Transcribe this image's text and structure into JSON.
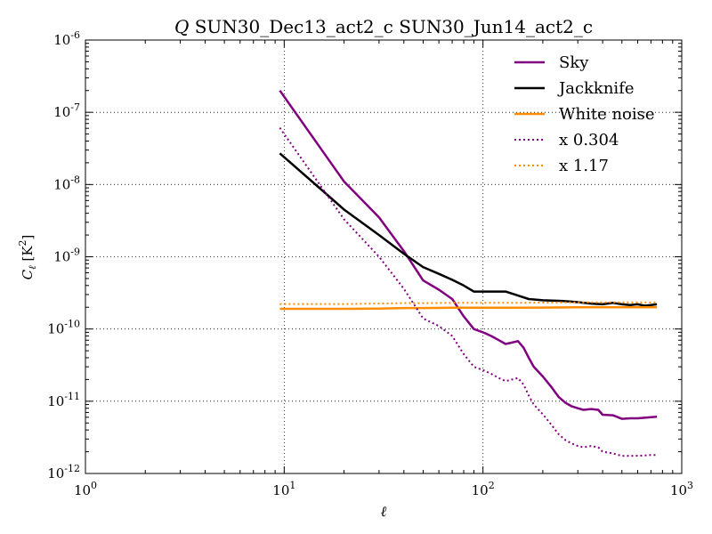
{
  "chart_data": {
    "type": "line",
    "title": {
      "prefix": "Q",
      "text": " SUN30_Dec13_act2_c SUN30_Jun14_act2_c"
    },
    "xlabel": "ℓ",
    "ylabel": {
      "base": "C",
      "sub": "ℓ",
      "unit_open": " [K",
      "unit_sup": "2",
      "unit_close": "]"
    },
    "x_scale": "log",
    "y_scale": "log",
    "xlim": [
      1,
      1000
    ],
    "ylim": [
      1e-12,
      1e-06
    ],
    "x_ticks": [
      {
        "value": 1,
        "base": "10",
        "exp": "0"
      },
      {
        "value": 10,
        "base": "10",
        "exp": "1"
      },
      {
        "value": 100,
        "base": "10",
        "exp": "2"
      },
      {
        "value": 1000,
        "base": "10",
        "exp": "3"
      }
    ],
    "y_ticks": [
      {
        "value": 1e-12,
        "base": "10",
        "exp": "-12"
      },
      {
        "value": 1e-11,
        "base": "10",
        "exp": "-11"
      },
      {
        "value": 1e-10,
        "base": "10",
        "exp": "-10"
      },
      {
        "value": 1e-09,
        "base": "10",
        "exp": "-9"
      },
      {
        "value": 1e-08,
        "base": "10",
        "exp": "-8"
      },
      {
        "value": 1e-07,
        "base": "10",
        "exp": "-7"
      },
      {
        "value": 1e-06,
        "base": "10",
        "exp": "-6"
      }
    ],
    "grid": true,
    "legend_position": "top-right",
    "series": [
      {
        "name": "Sky",
        "color": "#800080",
        "style": "solid",
        "x": [
          9.5,
          20,
          30,
          40,
          50,
          60,
          70,
          80,
          90,
          100,
          110,
          120,
          130,
          140,
          150,
          160,
          170,
          180,
          200,
          220,
          240,
          260,
          280,
          300,
          320,
          350,
          380,
          400,
          450,
          500,
          550,
          600,
          650,
          700,
          750
        ],
        "y": [
          2e-07,
          1.1e-08,
          3.5e-09,
          1.2e-09,
          4.7e-10,
          3.5e-10,
          2.6e-10,
          1.5e-10,
          1e-10,
          9e-11,
          8e-11,
          7e-11,
          6.2e-11,
          6.5e-11,
          6.8e-11,
          5.5e-11,
          4e-11,
          3e-11,
          2.2e-11,
          1.6e-11,
          1.15e-11,
          9.5e-12,
          8.5e-12,
          8e-12,
          7.6e-12,
          7.8e-12,
          7.6e-12,
          6.5e-12,
          6.4e-12,
          5.7e-12,
          5.8e-12,
          5.8e-12,
          5.9e-12,
          6e-12,
          6.1e-12
        ]
      },
      {
        "name": "Jackknife",
        "color": "#000000",
        "style": "solid",
        "x": [
          9.5,
          15,
          20,
          30,
          40,
          50,
          60,
          70,
          80,
          90,
          100,
          110,
          120,
          130,
          150,
          170,
          200,
          250,
          300,
          350,
          400,
          450,
          500,
          550,
          600,
          650,
          700,
          750
        ],
        "y": [
          2.7e-08,
          9e-09,
          4.5e-09,
          2e-09,
          1.1e-09,
          7.2e-10,
          5.8e-10,
          4.8e-10,
          4e-10,
          3.3e-10,
          3.3e-10,
          3.3e-10,
          3.3e-10,
          3.3e-10,
          2.9e-10,
          2.6e-10,
          2.5e-10,
          2.45e-10,
          2.35e-10,
          2.25e-10,
          2.2e-10,
          2.3e-10,
          2.2e-10,
          2.15e-10,
          2.2e-10,
          2.1e-10,
          2.15e-10,
          2.2e-10
        ]
      },
      {
        "name": "White noise",
        "color": "#ff8c00",
        "style": "solid",
        "x": [
          9.5,
          20,
          30,
          40,
          50,
          70,
          100,
          150,
          200,
          300,
          400,
          500,
          600,
          700,
          750
        ],
        "y": [
          1.9e-10,
          1.9e-10,
          1.92e-10,
          1.95e-10,
          1.95e-10,
          1.97e-10,
          1.97e-10,
          1.97e-10,
          1.98e-10,
          2e-10,
          2e-10,
          2e-10,
          2e-10,
          2e-10,
          2e-10
        ]
      },
      {
        "name": "x 0.304",
        "color": "#800080",
        "style": "dotted",
        "x": [
          9.5,
          20,
          30,
          40,
          50,
          60,
          70,
          80,
          90,
          100,
          110,
          120,
          130,
          140,
          150,
          160,
          170,
          180,
          200,
          220,
          240,
          260,
          280,
          300,
          320,
          350,
          380,
          400,
          450,
          500,
          550,
          600,
          650,
          700,
          750
        ],
        "y": [
          6.1e-08,
          3.3e-09,
          1e-09,
          3.6e-10,
          1.4e-10,
          1.1e-10,
          8e-11,
          4.5e-11,
          3e-11,
          2.7e-11,
          2.4e-11,
          2.1e-11,
          1.9e-11,
          2e-11,
          2.1e-11,
          1.7e-11,
          1.2e-11,
          9e-12,
          6.6e-12,
          4.8e-12,
          3.5e-12,
          2.9e-12,
          2.6e-12,
          2.4e-12,
          2.3e-12,
          2.4e-12,
          2.3e-12,
          2e-12,
          1.9e-12,
          1.75e-12,
          1.75e-12,
          1.76e-12,
          1.78e-12,
          1.8e-12,
          1.8e-12
        ]
      },
      {
        "name": "x 1.17",
        "color": "#ff8c00",
        "style": "dotted",
        "x": [
          9.5,
          20,
          30,
          40,
          50,
          70,
          100,
          150,
          200,
          300,
          400,
          500,
          600,
          700,
          750
        ],
        "y": [
          2.22e-10,
          2.22e-10,
          2.25e-10,
          2.28e-10,
          2.28e-10,
          2.3e-10,
          2.3e-10,
          2.3e-10,
          2.32e-10,
          2.34e-10,
          2.34e-10,
          2.34e-10,
          2.34e-10,
          2.34e-10,
          2.34e-10
        ]
      }
    ]
  }
}
